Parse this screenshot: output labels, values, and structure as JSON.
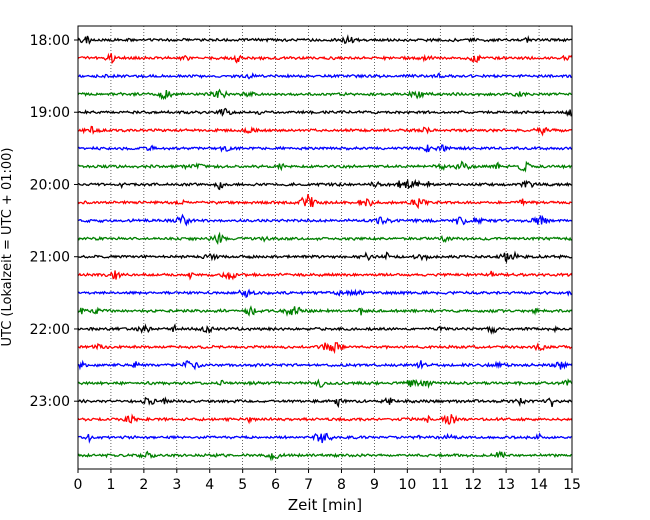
{
  "chart_data": {
    "type": "line",
    "title": "",
    "xlabel": "Zeit  [min]",
    "ylabel": "UTC (Lokalzeit = UTC + 01:00)",
    "xlim": [
      0,
      15
    ],
    "x_ticks": [
      "0",
      "1",
      "2",
      "3",
      "4",
      "5",
      "6",
      "7",
      "8",
      "9",
      "10",
      "11",
      "12",
      "13",
      "14",
      "15"
    ],
    "y_ticks": [
      "18:00",
      "19:00",
      "20:00",
      "21:00",
      "22:00",
      "23:00"
    ],
    "grid": "vertical dotted",
    "legend": "none",
    "colors": [
      "#000000",
      "#ff0000",
      "#0000ff",
      "#008000"
    ],
    "traces": [
      {
        "start": "18:00",
        "color": "#000000"
      },
      {
        "start": "18:15",
        "color": "#ff0000"
      },
      {
        "start": "18:30",
        "color": "#0000ff"
      },
      {
        "start": "18:45",
        "color": "#008000"
      },
      {
        "start": "19:00",
        "color": "#000000"
      },
      {
        "start": "19:15",
        "color": "#ff0000"
      },
      {
        "start": "19:30",
        "color": "#0000ff"
      },
      {
        "start": "19:45",
        "color": "#008000"
      },
      {
        "start": "20:00",
        "color": "#000000"
      },
      {
        "start": "20:15",
        "color": "#ff0000"
      },
      {
        "start": "20:30",
        "color": "#0000ff"
      },
      {
        "start": "20:45",
        "color": "#008000"
      },
      {
        "start": "21:00",
        "color": "#000000"
      },
      {
        "start": "21:15",
        "color": "#ff0000"
      },
      {
        "start": "21:30",
        "color": "#0000ff"
      },
      {
        "start": "21:45",
        "color": "#008000"
      },
      {
        "start": "22:00",
        "color": "#000000"
      },
      {
        "start": "22:15",
        "color": "#ff0000"
      },
      {
        "start": "22:30",
        "color": "#0000ff"
      },
      {
        "start": "22:45",
        "color": "#008000"
      },
      {
        "start": "23:00",
        "color": "#000000"
      },
      {
        "start": "23:15",
        "color": "#ff0000"
      },
      {
        "start": "23:30",
        "color": "#0000ff"
      },
      {
        "start": "23:45",
        "color": "#008000"
      }
    ]
  }
}
